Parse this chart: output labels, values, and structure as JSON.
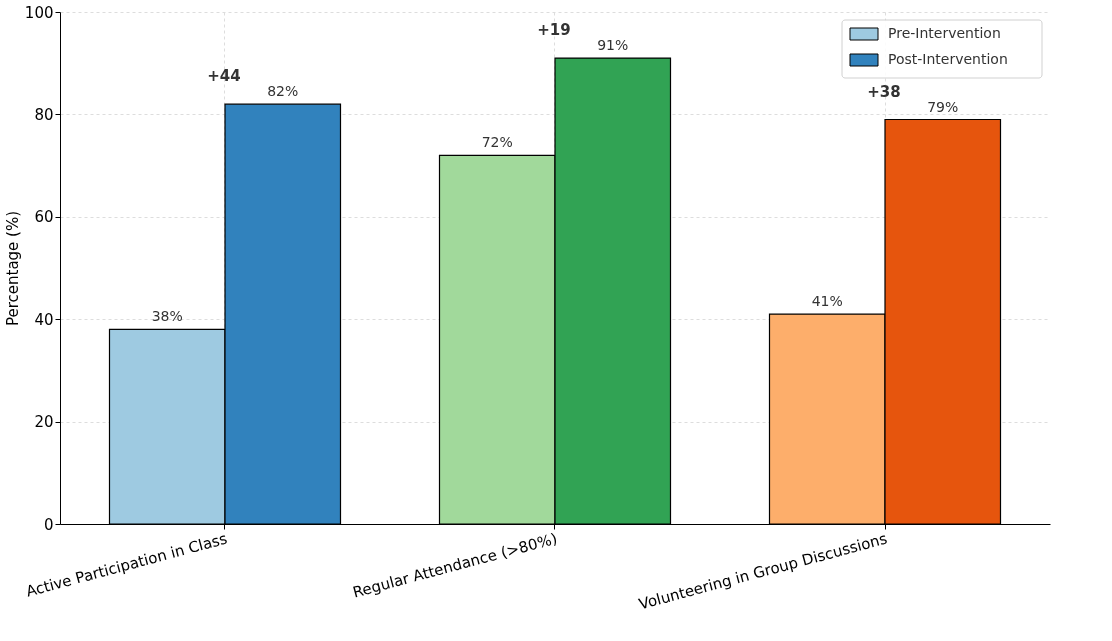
{
  "chart_data": {
    "type": "bar",
    "categories": [
      "Active Participation in Class",
      "Regular Attendance (>80%)",
      "Volunteering in Group Discussions"
    ],
    "series": [
      {
        "name": "Pre-Intervention",
        "color": "#9ecae1",
        "colors": [
          "#9ecae1",
          "#a1d99b",
          "#fdae6b"
        ],
        "values": [
          38,
          72,
          41
        ],
        "value_labels": [
          "38%",
          "72%",
          "41%"
        ]
      },
      {
        "name": "Post-Intervention",
        "color": "#3182bd",
        "colors": [
          "#3182bd",
          "#31a354",
          "#e6550d"
        ],
        "values": [
          82,
          91,
          79
        ],
        "value_labels": [
          "82%",
          "91%",
          "79%"
        ]
      }
    ],
    "ylabel": "Percentage (%)",
    "ylim": [
      0,
      100
    ],
    "yticks": [
      0,
      20,
      40,
      60,
      80,
      100
    ],
    "annotations": [
      "+44",
      "+19",
      "+38"
    ],
    "grid": true,
    "legend": "top right"
  }
}
